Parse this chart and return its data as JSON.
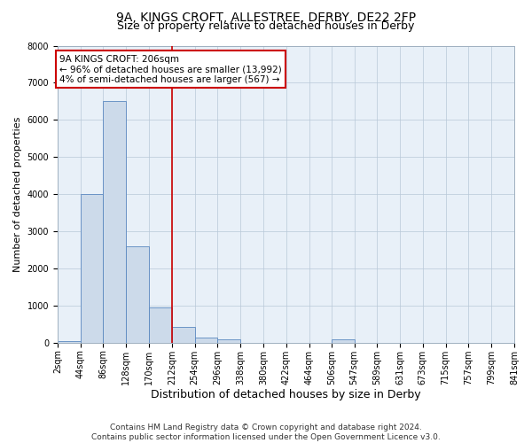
{
  "title1": "9A, KINGS CROFT, ALLESTREE, DERBY, DE22 2FP",
  "title2": "Size of property relative to detached houses in Derby",
  "xlabel": "Distribution of detached houses by size in Derby",
  "ylabel": "Number of detached properties",
  "annotation_line1": "9A KINGS CROFT: 206sqm",
  "annotation_line2": "← 96% of detached houses are smaller (13,992)",
  "annotation_line3": "4% of semi-detached houses are larger (567) →",
  "footer1": "Contains HM Land Registry data © Crown copyright and database right 2024.",
  "footer2": "Contains public sector information licensed under the Open Government Licence v3.0.",
  "bin_edges": [
    2,
    44,
    86,
    128,
    170,
    212,
    254,
    296,
    338,
    380,
    422,
    464,
    506,
    547,
    589,
    631,
    673,
    715,
    757,
    799,
    841
  ],
  "bar_heights": [
    50,
    4000,
    6500,
    2600,
    950,
    430,
    150,
    100,
    0,
    0,
    0,
    0,
    100,
    0,
    0,
    0,
    0,
    0,
    0,
    0
  ],
  "bar_color": "#ccdaea",
  "bar_edge_color": "#5a88c0",
  "vline_x": 212,
  "vline_color": "#cc0000",
  "annotation_box_color": "#cc0000",
  "ylim": [
    0,
    8000
  ],
  "yticks": [
    0,
    1000,
    2000,
    3000,
    4000,
    5000,
    6000,
    7000,
    8000
  ],
  "grid_color": "#b8c8d8",
  "bg_color": "#e8f0f8",
  "title1_fontsize": 10,
  "title2_fontsize": 9,
  "xlabel_fontsize": 9,
  "ylabel_fontsize": 8,
  "tick_fontsize": 7,
  "footer_fontsize": 6.5,
  "annotation_fontsize": 7.5
}
